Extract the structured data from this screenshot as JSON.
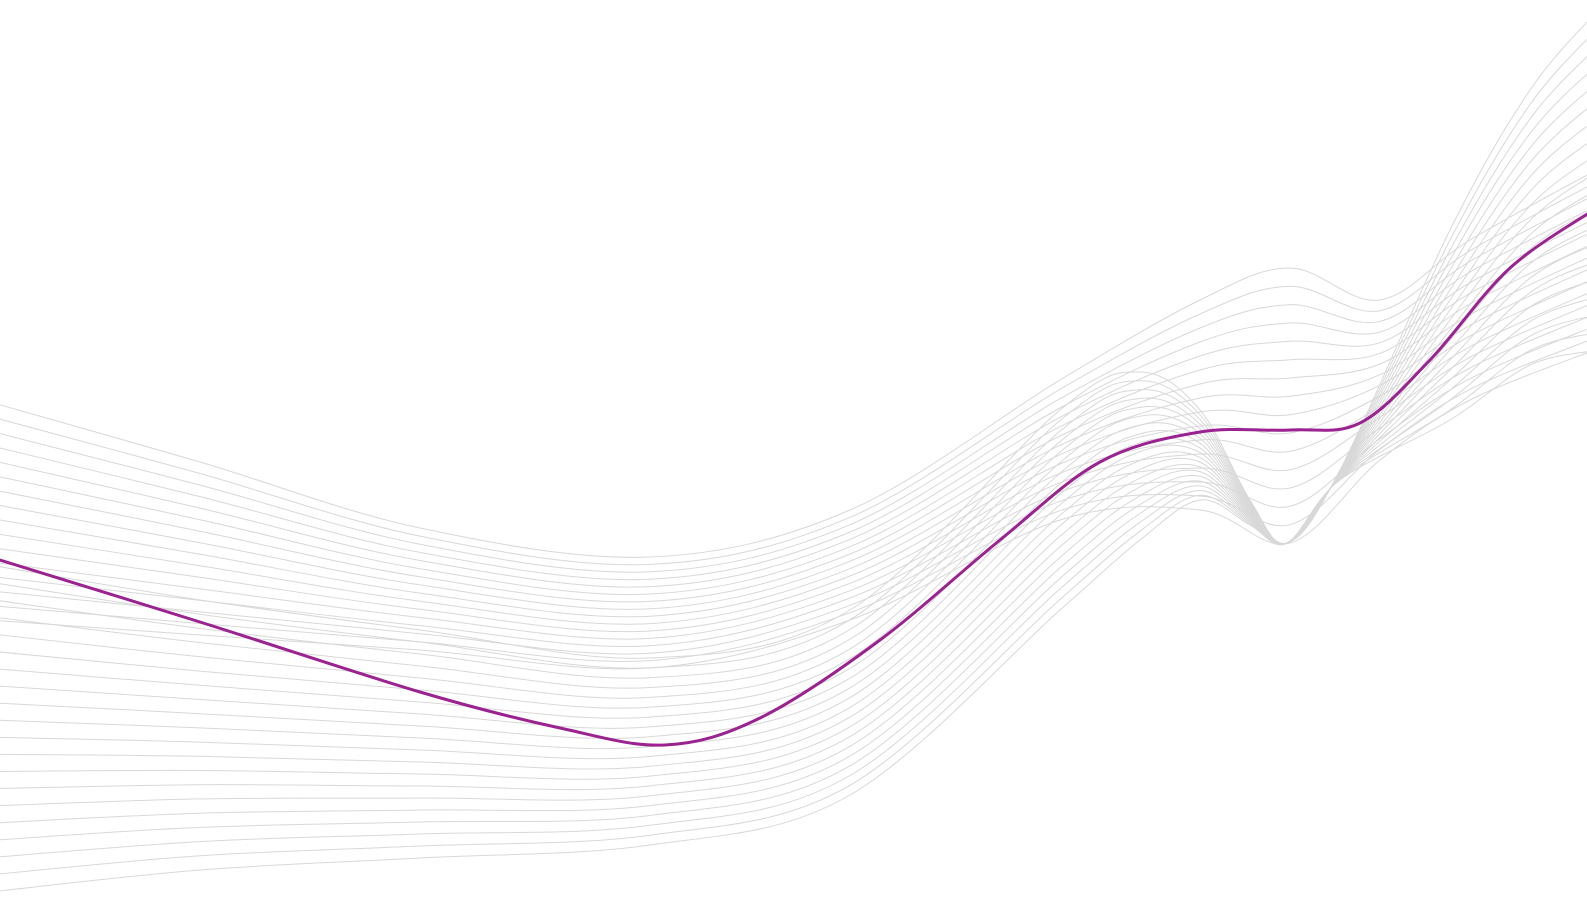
{
  "background": {
    "color": "#ffffff"
  },
  "wave_pattern": {
    "line_color": "#d8d8d8",
    "accent_color": "#9b2291",
    "upper_line_count": 16,
    "lower_line_count": 20
  }
}
